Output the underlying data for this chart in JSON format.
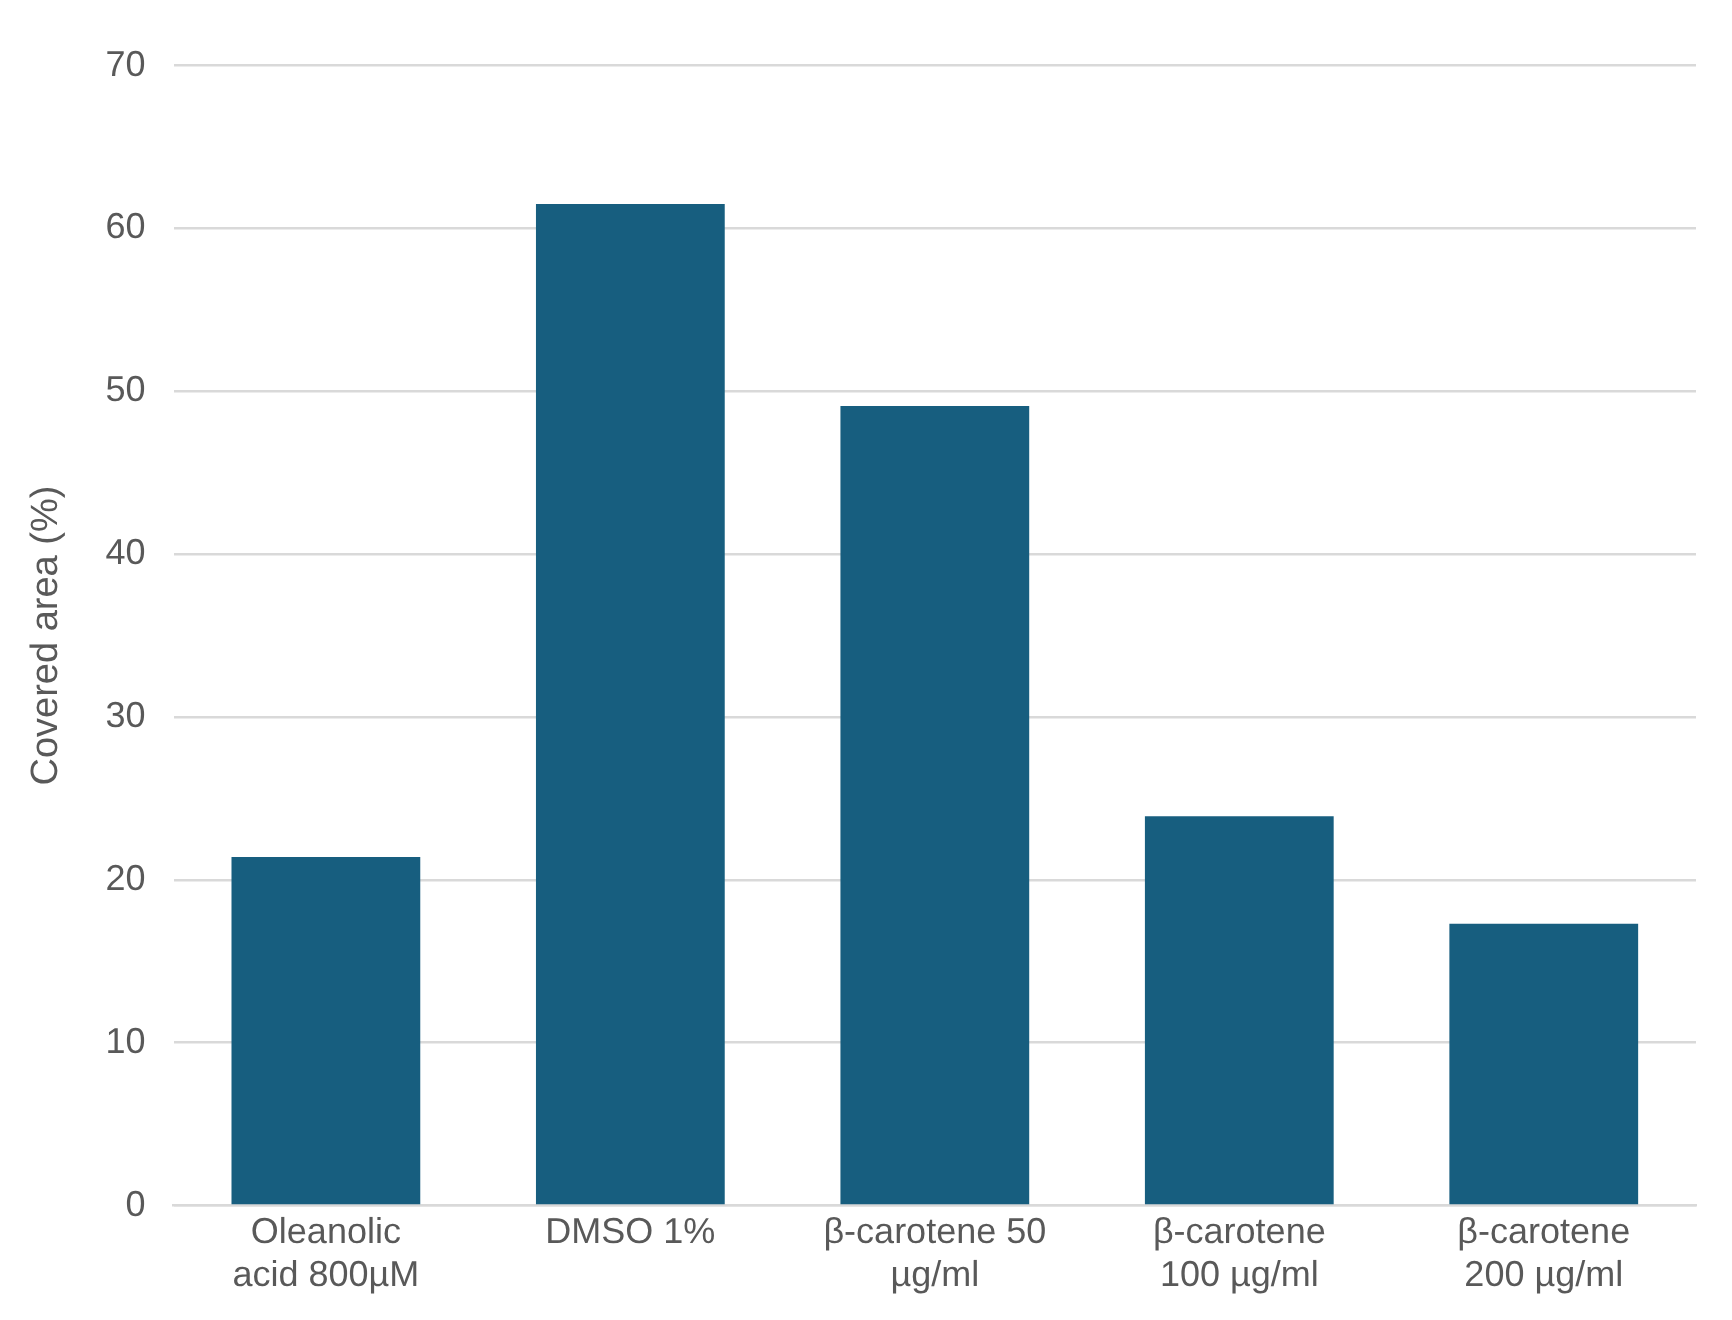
{
  "chart_data": {
    "type": "bar",
    "ylabel": "Covered area (%)",
    "categories": [
      "Oleanolic acid 800µM",
      "DMSO 1%",
      "β-carotene 50 µg/ml",
      "β-carotene 100 µg/ml",
      "β-carotene 200 µg/ml"
    ],
    "values": [
      21.4,
      61.5,
      49.1,
      23.9,
      17.3
    ],
    "color": "#175e7f",
    "ylim": [
      0,
      70
    ],
    "yticks": [
      0,
      10,
      20,
      30,
      40,
      50,
      60,
      70
    ],
    "grid": "y",
    "legend": false
  }
}
